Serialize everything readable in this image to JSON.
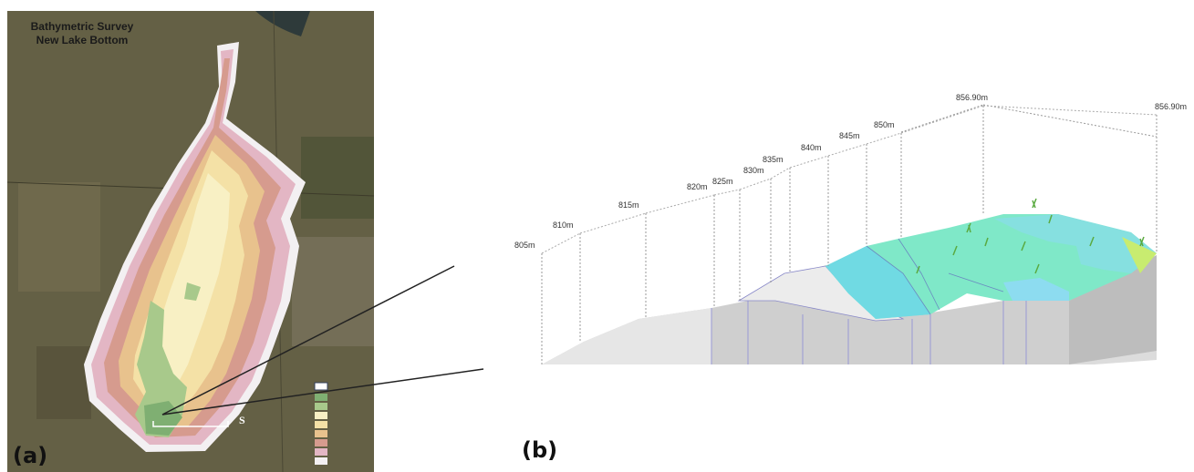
{
  "panel_a": {
    "title": [
      "Bathymetric Survey",
      "New Lake Bottom"
    ],
    "scale_label": "S",
    "label": "(a)"
  },
  "panel_b": {
    "label": "(b)",
    "elevation_labels": [
      "805m",
      "810m",
      "815m",
      "820m",
      "825m",
      "830m",
      "835m",
      "840m",
      "845m",
      "850m",
      "856.90m",
      "856.90m"
    ]
  }
}
